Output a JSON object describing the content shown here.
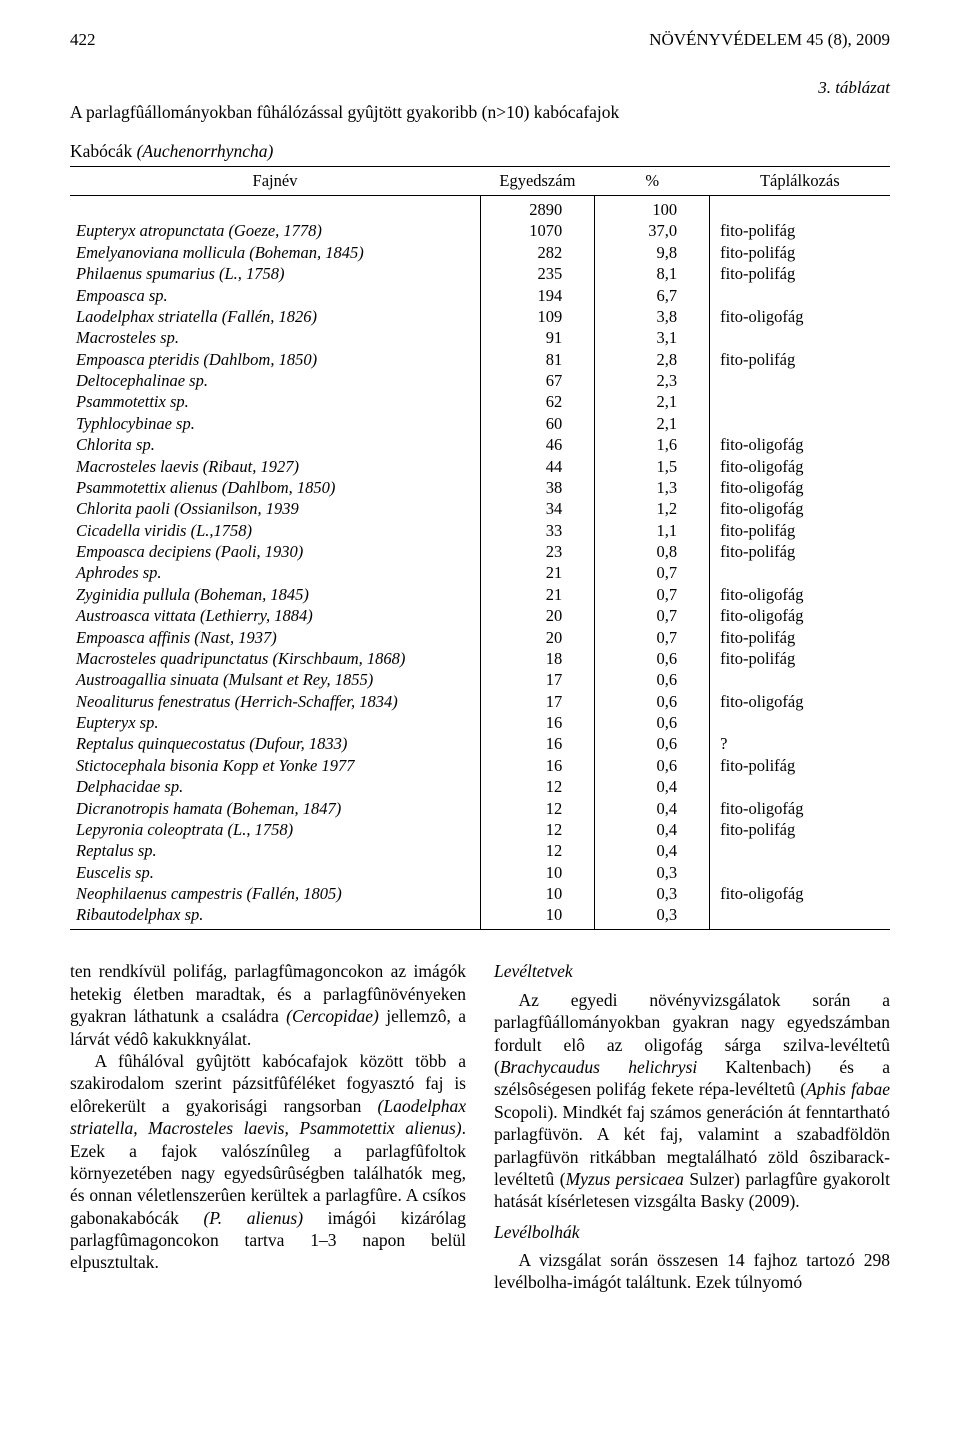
{
  "header": {
    "page_number": "422",
    "running_title": "NÖVÉNYVÉDELEM 45 (8), 2009"
  },
  "table": {
    "number_label": "3. táblázat",
    "title": "A parlagfûállományokban fûhálózással gyûjtött gyakoribb (n>10) kabócafajok",
    "subhead_prefix": "Kabócák ",
    "subhead_italic": "(Auchenorrhyncha)",
    "columns": {
      "name": "Fajnév",
      "count": "Egyedszám",
      "pct": "%",
      "feed": "Táplálkozás"
    },
    "rows": [
      {
        "name": "",
        "count": "2890",
        "pct": "100",
        "feed": ""
      },
      {
        "name": "Eupteryx atropunctata (Goeze, 1778)",
        "count": "1070",
        "pct": "37,0",
        "feed": "fito-polifág"
      },
      {
        "name": "Emelyanoviana mollicula (Boheman, 1845)",
        "count": "282",
        "pct": "9,8",
        "feed": "fito-polifág"
      },
      {
        "name": "Philaenus spumarius (L., 1758)",
        "count": "235",
        "pct": "8,1",
        "feed": "fito-polifág"
      },
      {
        "name": "Empoasca sp.",
        "count": "194",
        "pct": "6,7",
        "feed": ""
      },
      {
        "name": "Laodelphax striatella (Fallén, 1826)",
        "count": "109",
        "pct": "3,8",
        "feed": "fito-oligofág"
      },
      {
        "name": "Macrosteles sp.",
        "count": "91",
        "pct": "3,1",
        "feed": ""
      },
      {
        "name": "Empoasca pteridis (Dahlbom, 1850)",
        "count": "81",
        "pct": "2,8",
        "feed": "fito-polifág"
      },
      {
        "name": "Deltocephalinae sp.",
        "count": "67",
        "pct": "2,3",
        "feed": ""
      },
      {
        "name": "Psammotettix sp.",
        "count": "62",
        "pct": "2,1",
        "feed": ""
      },
      {
        "name": "Typhlocybinae sp.",
        "count": "60",
        "pct": "2,1",
        "feed": ""
      },
      {
        "name": "Chlorita sp.",
        "count": "46",
        "pct": "1,6",
        "feed": "fito-oligofág"
      },
      {
        "name": "Macrosteles laevis (Ribaut, 1927)",
        "count": "44",
        "pct": "1,5",
        "feed": "fito-oligofág"
      },
      {
        "name": "Psammotettix alienus (Dahlbom, 1850)",
        "count": "38",
        "pct": "1,3",
        "feed": "fito-oligofág"
      },
      {
        "name": "Chlorita paoli (Ossianilson, 1939",
        "count": "34",
        "pct": "1,2",
        "feed": "fito-oligofág"
      },
      {
        "name": "Cicadella viridis (L.,1758)",
        "count": "33",
        "pct": "1,1",
        "feed": "fito-polifág"
      },
      {
        "name": "Empoasca decipiens (Paoli, 1930)",
        "count": "23",
        "pct": "0,8",
        "feed": "fito-polifág"
      },
      {
        "name": "Aphrodes sp.",
        "count": "21",
        "pct": "0,7",
        "feed": ""
      },
      {
        "name": "Zyginidia pullula (Boheman, 1845)",
        "count": "21",
        "pct": "0,7",
        "feed": "fito-oligofág"
      },
      {
        "name": "Austroasca vittata (Lethierry, 1884)",
        "count": "20",
        "pct": "0,7",
        "feed": "fito-oligofág"
      },
      {
        "name": "Empoasca affinis (Nast, 1937)",
        "count": "20",
        "pct": "0,7",
        "feed": "fito-polifág"
      },
      {
        "name": "Macrosteles quadripunctatus (Kirschbaum, 1868)",
        "count": "18",
        "pct": "0,6",
        "feed": "fito-polifág"
      },
      {
        "name": "Austroagallia sinuata (Mulsant et Rey, 1855)",
        "count": "17",
        "pct": "0,6",
        "feed": ""
      },
      {
        "name": "Neoaliturus fenestratus (Herrich-Schaffer, 1834)",
        "count": "17",
        "pct": "0,6",
        "feed": "fito-oligofág"
      },
      {
        "name": "Eupteryx sp.",
        "count": "16",
        "pct": "0,6",
        "feed": ""
      },
      {
        "name": "Reptalus quinquecostatus (Dufour, 1833)",
        "count": "16",
        "pct": "0,6",
        "feed": "?"
      },
      {
        "name": "Stictocephala bisonia Kopp et Yonke 1977",
        "count": "16",
        "pct": "0,6",
        "feed": "fito-polifág"
      },
      {
        "name": "Delphacidae sp.",
        "count": "12",
        "pct": "0,4",
        "feed": ""
      },
      {
        "name": "Dicranotropis hamata (Boheman, 1847)",
        "count": "12",
        "pct": "0,4",
        "feed": "fito-oligofág"
      },
      {
        "name": "Lepyronia coleoptrata (L., 1758)",
        "count": "12",
        "pct": "0,4",
        "feed": "fito-polifág"
      },
      {
        "name": "Reptalus sp.",
        "count": "12",
        "pct": "0,4",
        "feed": ""
      },
      {
        "name": "Euscelis sp.",
        "count": "10",
        "pct": "0,3",
        "feed": ""
      },
      {
        "name": "Neophilaenus campestris (Fallén, 1805)",
        "count": "10",
        "pct": "0,3",
        "feed": "fito-oligofág"
      },
      {
        "name": "Ribautodelphax sp.",
        "count": "10",
        "pct": "0,3",
        "feed": ""
      }
    ]
  },
  "body": {
    "left": {
      "p1_html": "ten rendkívül polifág, parlagfûmagoncokon az imágók hetekig életben maradtak, és a parlagfûnövényeken gyakran láthatunk a családra <em class='sp'>(Cercopidae)</em> jellemzô, a lárvát védô kakukknyálat.",
      "p2_html": "A fûhálóval gyûjtött kabócafajok között több a szakirodalom szerint pázsitfûféléket fogyasztó faj is elôrekerült a gyakorisági rangsorban <em class='sp'>(Laodelphax striatella, Macrosteles laevis, Psammotettix alienus)</em>. Ezek a fajok valószínûleg a parlagfûfoltok környezetében nagy egyedsûrûségben találhatók meg, és onnan véletlenszerûen kerültek a parlagfûre. A csíkos gabonakabócák <em class='sp'>(P. alienus)</em> imágói kizárólag parlagfûmagoncokon tartva 1–3 napon belül elpusztultak."
    },
    "right": {
      "h1": "Levéltetvek",
      "p1_html": "Az egyedi növényvizsgálatok során a parlagfûállományokban gyakran nagy egyedszámban fordult elô az oligofág sárga szilva-levéltetû (<em class='sp'>Brachycaudus helichrysi</em> Kaltenbach) és a szélsôségesen polifág fekete répa-levéltetû (<em class='sp'>Aphis fabae</em> Scopoli). Mindkét faj számos generáción át fenntartható parlagfüvön. A két faj, valamint a szabadföldön parlagfüvön ritkábban megtalálható zöld ôszibarack-levéltetû (<em class='sp'>Myzus persicaea</em> Sulzer) parlagfûre gyakorolt hatását kísérletesen vizsgálta Basky (2009).",
      "h2": "Levélbolhák",
      "p2_html": "A vizsgálat során összesen 14 fajhoz tartozó 298 levélbolha-imágót találtunk. Ezek túlnyomó"
    }
  }
}
